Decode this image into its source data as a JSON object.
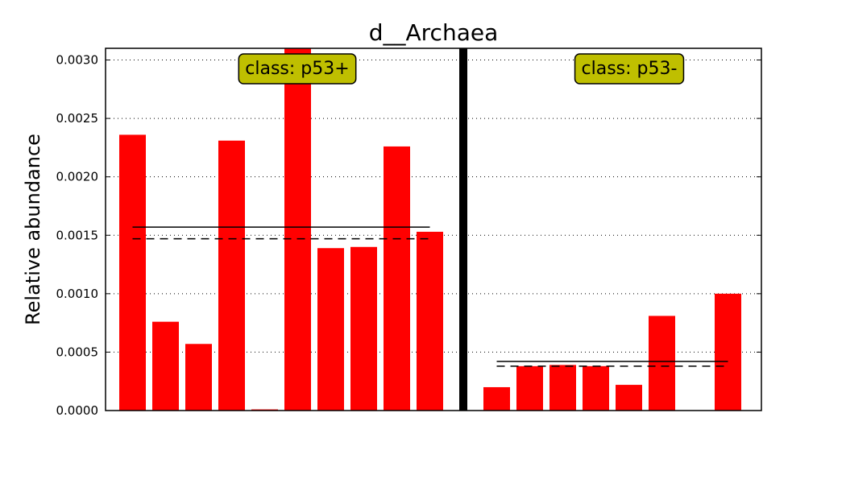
{
  "chart_data": {
    "type": "bar",
    "title": "d__Archaea",
    "xlabel": "",
    "ylabel": "Relative abundance",
    "ylim": [
      0,
      0.0031
    ],
    "yticks": [
      "0.0000",
      "0.0005",
      "0.0010",
      "0.0015",
      "0.0020",
      "0.0025",
      "0.0030"
    ],
    "ytick_values": [
      0,
      0.0005,
      0.001,
      0.0015,
      0.002,
      0.0025,
      0.003
    ],
    "grid": "y-dotted",
    "bar_color": "#ff0000",
    "box_color": "#bfbf00",
    "groups": [
      {
        "label": "class: p53+",
        "values": [
          0.00236,
          0.00076,
          0.00057,
          0.00231,
          1e-05,
          0.0031,
          0.00139,
          0.0014,
          0.00226,
          0.00153
        ],
        "mean": 0.00157,
        "median": 0.00147
      },
      {
        "label": "class: p53-",
        "values": [
          0.0002,
          0.00038,
          0.00039,
          0.00038,
          0.00022,
          0.00081,
          0.0,
          0.001
        ],
        "mean": 0.00042,
        "median": 0.00038
      }
    ]
  }
}
